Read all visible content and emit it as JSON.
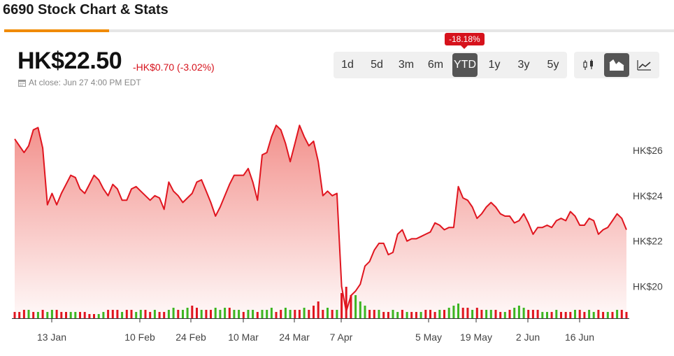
{
  "page": {
    "title": "6690 Stock Chart & Stats"
  },
  "quote": {
    "price": "HK$22.50",
    "change": "-HK$0.70 (-3.02%)",
    "close_info": "At close: Jun 27 4:00 PM EDT"
  },
  "ranges": {
    "buttons": [
      "1d",
      "5d",
      "3m",
      "6m",
      "YTD",
      "1y",
      "3y",
      "5y"
    ],
    "active": "YTD",
    "active_badge": "-18.18%"
  },
  "chart_types": {
    "buttons": [
      "candlestick-icon",
      "mountain-icon",
      "line-icon"
    ],
    "active": "mountain-icon"
  },
  "colors": {
    "price_line": "#e0151f",
    "area_fill": "#f28b86",
    "volume_up": "#3cb521",
    "volume_down": "#e0151f",
    "accent": "#f08a00"
  },
  "chart_data": {
    "type": "area",
    "title": "",
    "xlabel": "",
    "ylabel": "",
    "x_tick_labels": [
      "13 Jan",
      "10 Feb",
      "24 Feb",
      "10 Mar",
      "24 Mar",
      "7 Apr",
      "5 May",
      "19 May",
      "2 Jun",
      "16 Jun"
    ],
    "y_tick_labels": [
      "HK$26",
      "HK$24",
      "HK$22",
      "HK$20"
    ],
    "y_ticks": [
      26,
      24,
      22,
      20
    ],
    "ylim": [
      18.6,
      28
    ],
    "grid": false,
    "series": [
      {
        "values": [
          26.5,
          26.2,
          25.9,
          26.2,
          26.9,
          27.0,
          26.1,
          23.6,
          24.1,
          23.6,
          24.1,
          24.5,
          24.9,
          24.8,
          24.3,
          24.1,
          24.5,
          24.9,
          24.7,
          24.3,
          24.0,
          24.5,
          24.3,
          23.8,
          23.8,
          24.3,
          24.4,
          24.2,
          24.0,
          23.8,
          24.0,
          23.9,
          23.4,
          24.6,
          24.2,
          24.0,
          23.7,
          23.9,
          24.1,
          24.6,
          24.7,
          24.2,
          23.7,
          23.1,
          23.5,
          24.0,
          24.5,
          24.9,
          24.9,
          24.9,
          25.2,
          24.6,
          23.8,
          25.8,
          25.9,
          26.6,
          27.1,
          26.9,
          26.3,
          25.5,
          26.3,
          27.1,
          26.6,
          26.2,
          26.4,
          25.5,
          24.0,
          24.2,
          24.0,
          24.1,
          20.0,
          18.9,
          19.6,
          19.8,
          20.1,
          20.9,
          21.1,
          21.6,
          21.9,
          21.9,
          21.4,
          21.5,
          22.3,
          22.5,
          22.0,
          22.1,
          22.1,
          22.2,
          22.3,
          22.4,
          22.8,
          22.7,
          22.5,
          22.6,
          22.6,
          24.4,
          23.9,
          23.8,
          23.5,
          23.0,
          23.2,
          23.5,
          23.7,
          23.5,
          23.2,
          23.1,
          23.1,
          22.8,
          22.9,
          23.2,
          22.8,
          22.3,
          22.6,
          22.6,
          22.7,
          22.6,
          22.9,
          23.0,
          22.9,
          23.3,
          23.1,
          22.7,
          22.7,
          23.0,
          22.9,
          22.3,
          22.5,
          22.6,
          22.9,
          23.2,
          23.0,
          22.5
        ]
      },
      {
        "name": "Volume",
        "up": [
          false,
          false,
          false,
          true,
          false,
          true,
          false,
          true,
          true,
          false,
          false,
          false,
          true,
          true,
          false,
          false,
          false,
          false,
          true,
          true,
          false,
          false,
          false,
          true,
          false,
          false,
          true,
          true,
          false,
          false,
          true,
          false,
          false,
          true,
          true,
          false,
          true,
          true,
          false,
          false,
          true,
          false,
          false,
          true,
          true,
          true,
          false,
          true,
          true,
          false,
          true,
          true,
          false,
          true,
          true,
          true,
          false,
          false,
          true,
          true,
          false,
          false,
          true,
          false,
          false,
          false,
          false,
          true,
          false,
          true,
          false,
          false,
          false,
          true,
          true,
          true,
          false,
          false,
          true,
          false,
          false,
          true,
          true,
          false,
          true,
          false,
          false,
          true,
          false,
          false,
          false,
          true,
          false,
          true,
          true,
          true,
          false,
          false,
          true,
          false,
          false,
          true,
          true,
          false,
          false,
          true,
          false,
          true,
          true,
          true,
          false,
          false,
          false,
          true,
          true,
          false,
          true,
          false,
          false,
          false,
          true,
          false,
          false,
          true,
          true,
          false,
          false,
          true,
          false,
          true,
          false,
          false
        ],
        "values": [
          0.3,
          0.3,
          0.4,
          0.4,
          0.3,
          0.3,
          0.4,
          0.3,
          0.4,
          0.4,
          0.3,
          0.3,
          0.3,
          0.3,
          0.3,
          0.3,
          0.2,
          0.2,
          0.2,
          0.3,
          0.4,
          0.4,
          0.4,
          0.3,
          0.4,
          0.4,
          0.3,
          0.4,
          0.4,
          0.3,
          0.4,
          0.3,
          0.3,
          0.4,
          0.5,
          0.4,
          0.4,
          0.5,
          0.6,
          0.5,
          0.4,
          0.4,
          0.4,
          0.5,
          0.4,
          0.5,
          0.5,
          0.4,
          0.4,
          0.3,
          0.4,
          0.4,
          0.3,
          0.4,
          0.4,
          0.5,
          0.3,
          0.4,
          0.5,
          0.4,
          0.4,
          0.4,
          0.5,
          0.4,
          0.6,
          0.8,
          0.4,
          0.5,
          0.4,
          0.4,
          1.2,
          1.5,
          1.1,
          1.1,
          0.8,
          0.6,
          0.4,
          0.4,
          0.4,
          0.3,
          0.3,
          0.4,
          0.3,
          0.4,
          0.3,
          0.3,
          0.3,
          0.3,
          0.4,
          0.4,
          0.3,
          0.4,
          0.4,
          0.5,
          0.6,
          0.7,
          0.5,
          0.5,
          0.4,
          0.5,
          0.4,
          0.4,
          0.4,
          0.4,
          0.3,
          0.3,
          0.4,
          0.5,
          0.6,
          0.5,
          0.4,
          0.4,
          0.4,
          0.3,
          0.3,
          0.3,
          0.4,
          0.3,
          0.3,
          0.3,
          0.4,
          0.4,
          0.3,
          0.4,
          0.3,
          0.4,
          0.3,
          0.3,
          0.3,
          0.4,
          0.4,
          0.3
        ]
      }
    ]
  }
}
